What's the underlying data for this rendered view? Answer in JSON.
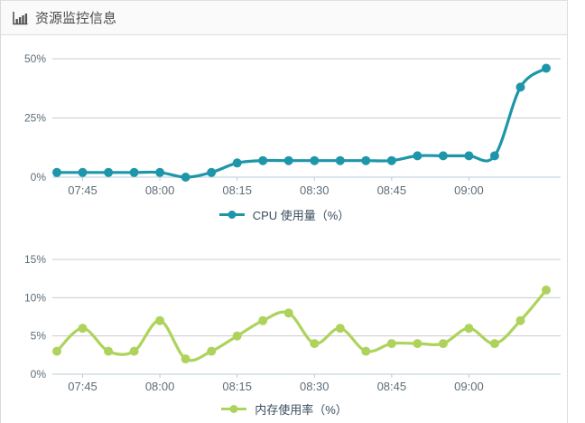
{
  "header": {
    "title": "资源监控信息",
    "icon": "bar-chart-icon"
  },
  "colors": {
    "cpu_line": "#1e96aa",
    "memory_line": "#aed35c",
    "grid": "#cccccc",
    "axis_line": "#b4ccd9",
    "tick_text": "#5d6d78",
    "legend_text": "#3b4d5e",
    "title_text": "#4c4c4c",
    "header_bg": "#fafafa",
    "panel_border": "#dcdcdc"
  },
  "chart_data": [
    {
      "type": "line",
      "title": "",
      "smooth": true,
      "grid": true,
      "legend_position": "bottom",
      "x": [
        "07:40",
        "07:45",
        "07:50",
        "07:55",
        "08:00",
        "08:05",
        "08:10",
        "08:15",
        "08:20",
        "08:25",
        "08:30",
        "08:35",
        "08:40",
        "08:45",
        "08:50",
        "08:55",
        "09:00",
        "09:05",
        "09:10",
        "09:15"
      ],
      "x_ticks": [
        {
          "index": 1,
          "label": "07:45"
        },
        {
          "index": 4,
          "label": "08:00"
        },
        {
          "index": 7,
          "label": "08:15"
        },
        {
          "index": 10,
          "label": "08:30"
        },
        {
          "index": 13,
          "label": "08:45"
        },
        {
          "index": 16,
          "label": "09:00"
        }
      ],
      "ylim": [
        0,
        50
      ],
      "yticks": [
        {
          "value": 0,
          "label": "0%"
        },
        {
          "value": 25,
          "label": "25%"
        },
        {
          "value": 50,
          "label": "50%"
        }
      ],
      "series": [
        {
          "name": "CPU 使用量（%）",
          "color": "#1e96aa",
          "values": [
            2,
            2,
            2,
            2,
            2,
            0,
            2,
            6,
            7,
            7,
            7,
            7,
            7,
            7,
            9,
            9,
            9,
            9,
            38,
            46
          ]
        }
      ]
    },
    {
      "type": "line",
      "title": "",
      "smooth": true,
      "grid": true,
      "legend_position": "bottom",
      "x": [
        "07:40",
        "07:45",
        "07:50",
        "07:55",
        "08:00",
        "08:05",
        "08:10",
        "08:15",
        "08:20",
        "08:25",
        "08:30",
        "08:35",
        "08:40",
        "08:45",
        "08:50",
        "08:55",
        "09:00",
        "09:05",
        "09:10",
        "09:15"
      ],
      "x_ticks": [
        {
          "index": 1,
          "label": "07:45"
        },
        {
          "index": 4,
          "label": "08:00"
        },
        {
          "index": 7,
          "label": "08:15"
        },
        {
          "index": 10,
          "label": "08:30"
        },
        {
          "index": 13,
          "label": "08:45"
        },
        {
          "index": 16,
          "label": "09:00"
        }
      ],
      "ylim": [
        0,
        15
      ],
      "yticks": [
        {
          "value": 0,
          "label": "0%"
        },
        {
          "value": 5,
          "label": "5%"
        },
        {
          "value": 10,
          "label": "10%"
        },
        {
          "value": 15,
          "label": "15%"
        }
      ],
      "series": [
        {
          "name": "内存使用率（%）",
          "color": "#aed35c",
          "values": [
            3,
            6,
            3,
            3,
            7,
            2,
            3,
            5,
            7,
            8,
            4,
            6,
            3,
            4,
            4,
            4,
            6,
            4,
            7,
            11
          ]
        }
      ]
    }
  ]
}
